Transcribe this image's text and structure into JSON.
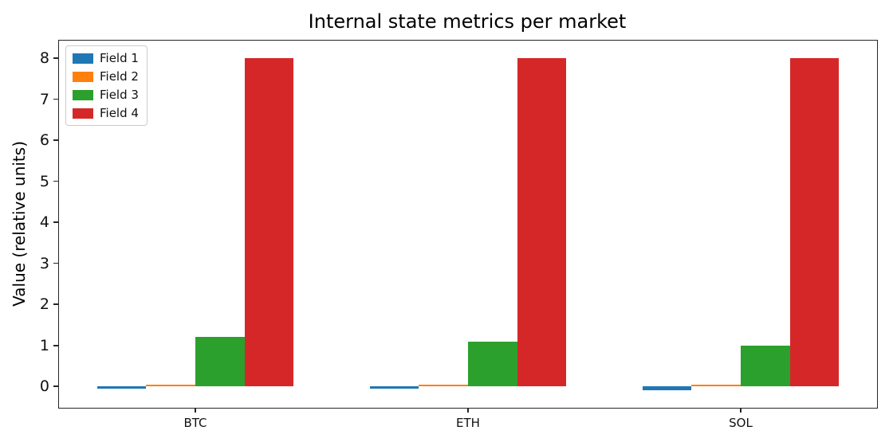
{
  "figure": {
    "background": "#ffffff",
    "axis_color": "#262626",
    "text_color": "#111111"
  },
  "chart_data": {
    "type": "bar",
    "title": "Internal state metrics per market",
    "xlabel": "",
    "ylabel": "Value (relative units)",
    "categories": [
      "BTC",
      "ETH",
      "SOL"
    ],
    "series": [
      {
        "name": "Field 1",
        "color": "#1f77b4",
        "values": [
          -0.05,
          -0.06,
          -0.1
        ]
      },
      {
        "name": "Field 2",
        "color": "#ff7f0e",
        "values": [
          0.03,
          0.04,
          0.05
        ]
      },
      {
        "name": "Field 3",
        "color": "#2ca02c",
        "values": [
          1.2,
          1.1,
          1.0
        ]
      },
      {
        "name": "Field 4",
        "color": "#d62728",
        "values": [
          8,
          8,
          8
        ]
      }
    ],
    "y_ticks": [
      0,
      1,
      2,
      3,
      4,
      5,
      6,
      7,
      8
    ],
    "ylim": [
      -0.52,
      8.43
    ],
    "xlim": [
      -0.5,
      2.5
    ],
    "bar_width": 0.18,
    "grid": false,
    "legend_position": "upper left"
  }
}
